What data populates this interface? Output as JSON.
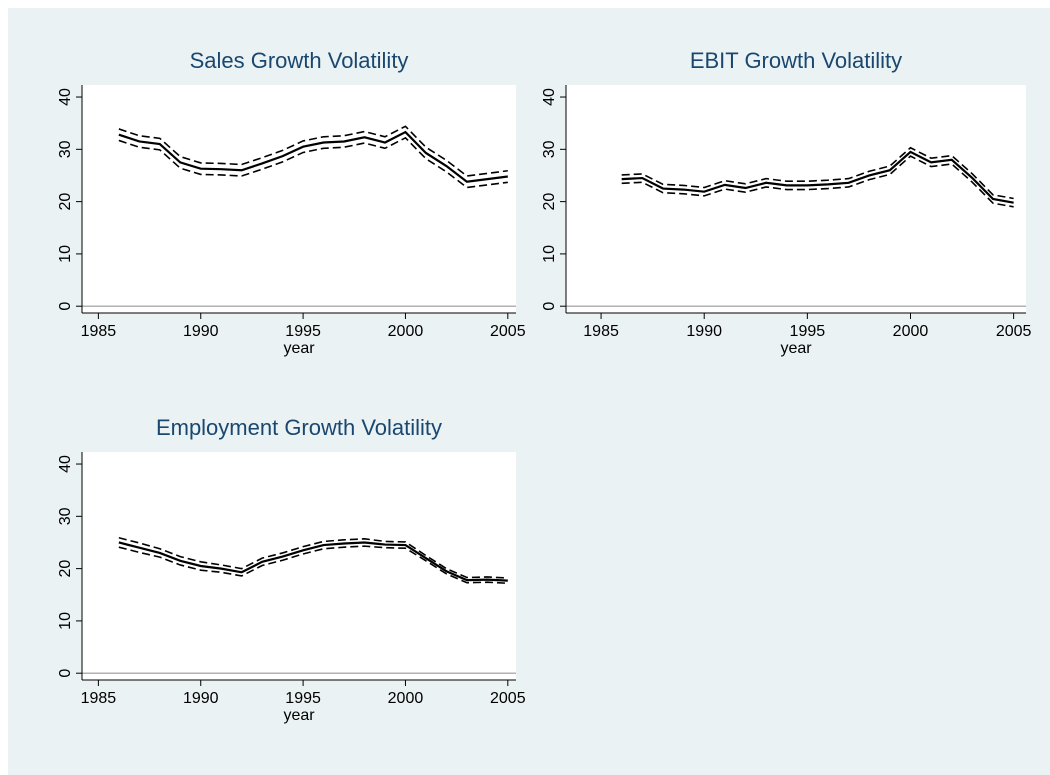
{
  "chart_data": [
    {
      "type": "line",
      "title": "Sales Growth Volatility",
      "xlabel": "year",
      "x": [
        1986,
        1987,
        1988,
        1989,
        1990,
        1991,
        1992,
        1993,
        1994,
        1995,
        1996,
        1997,
        1998,
        1999,
        2000,
        2001,
        2002,
        2003,
        2004,
        2005
      ],
      "series": [
        {
          "color": "#000000",
          "dash": false,
          "values": [
            32.8,
            31.5,
            31.0,
            27.5,
            26.3,
            26.2,
            26.0,
            27.3,
            28.7,
            30.5,
            31.3,
            31.5,
            32.3,
            31.3,
            33.3,
            29.3,
            26.8,
            23.8,
            24.3,
            24.8
          ]
        },
        {
          "color": "#000000",
          "dash": true,
          "values": [
            33.9,
            32.6,
            32.1,
            28.6,
            27.4,
            27.3,
            27.1,
            28.4,
            29.8,
            31.6,
            32.4,
            32.6,
            33.4,
            32.4,
            34.4,
            30.4,
            27.9,
            24.9,
            25.4,
            25.9
          ]
        },
        {
          "color": "#000000",
          "dash": true,
          "values": [
            31.7,
            30.4,
            29.9,
            26.4,
            25.2,
            25.1,
            24.9,
            26.2,
            27.6,
            29.4,
            30.2,
            30.4,
            31.2,
            30.2,
            32.2,
            28.2,
            25.7,
            22.7,
            23.2,
            23.7
          ]
        }
      ],
      "xlim": [
        1984.2,
        2005.4
      ],
      "xticks": [
        1985,
        1990,
        1995,
        2000,
        2005
      ],
      "ylim": [
        -1.3,
        42.3
      ],
      "yticks": [
        0,
        10,
        20,
        30,
        40
      ],
      "hline": 0,
      "grid": false
    },
    {
      "type": "line",
      "title": "EBIT Growth Volatility",
      "xlabel": "year",
      "x": [
        1986,
        1987,
        1988,
        1989,
        1990,
        1991,
        1992,
        1993,
        1994,
        1995,
        1996,
        1997,
        1998,
        1999,
        2000,
        2001,
        2002,
        2003,
        2004,
        2005
      ],
      "series": [
        {
          "color": "#000000",
          "dash": false,
          "values": [
            24.3,
            24.5,
            22.5,
            22.3,
            21.9,
            23.2,
            22.6,
            23.6,
            23.1,
            23.1,
            23.3,
            23.6,
            25.0,
            26.0,
            29.5,
            27.5,
            28.0,
            24.5,
            20.5,
            19.8
          ]
        },
        {
          "color": "#000000",
          "dash": true,
          "values": [
            25.1,
            25.3,
            23.3,
            23.1,
            22.7,
            24.0,
            23.4,
            24.4,
            23.9,
            23.9,
            24.1,
            24.4,
            25.8,
            26.8,
            30.3,
            28.3,
            28.8,
            25.3,
            21.3,
            20.6
          ]
        },
        {
          "color": "#000000",
          "dash": true,
          "values": [
            23.5,
            23.7,
            21.7,
            21.5,
            21.1,
            22.4,
            21.8,
            22.8,
            22.3,
            22.3,
            22.5,
            22.8,
            24.2,
            25.2,
            28.7,
            26.7,
            27.2,
            23.7,
            19.7,
            19.0
          ]
        }
      ],
      "xlim": [
        1983.3,
        2005.6
      ],
      "xticks": [
        1985,
        1990,
        1995,
        2000,
        2005
      ],
      "ylim": [
        -1.3,
        42.3
      ],
      "yticks": [
        0,
        10,
        20,
        30,
        40
      ],
      "hline": 0,
      "grid": false
    },
    {
      "type": "line",
      "title": "Employment Growth Volatility",
      "xlabel": "year",
      "x": [
        1986,
        1987,
        1988,
        1989,
        1990,
        1991,
        1992,
        1993,
        1994,
        1995,
        1996,
        1997,
        1998,
        1999,
        2000,
        2001,
        2002,
        2003,
        2004,
        2005
      ],
      "series": [
        {
          "color": "#000000",
          "dash": false,
          "values": [
            25.0,
            24.0,
            23.0,
            21.5,
            20.5,
            20.0,
            19.3,
            21.3,
            22.3,
            23.5,
            24.5,
            24.8,
            25.0,
            24.6,
            24.5,
            22.0,
            19.5,
            17.8,
            17.9,
            17.7
          ]
        },
        {
          "color": "#000000",
          "dash": true,
          "values": [
            25.9,
            24.9,
            23.8,
            22.3,
            21.3,
            20.7,
            20.0,
            22.0,
            23.0,
            24.2,
            25.2,
            25.5,
            25.7,
            25.2,
            25.1,
            22.5,
            20.0,
            18.3,
            18.4,
            18.2
          ]
        },
        {
          "color": "#000000",
          "dash": true,
          "values": [
            24.1,
            23.1,
            22.2,
            20.7,
            19.7,
            19.3,
            18.6,
            20.6,
            21.6,
            22.8,
            23.8,
            24.1,
            24.3,
            24.0,
            23.9,
            21.5,
            19.0,
            17.3,
            17.4,
            17.2
          ]
        }
      ],
      "xlim": [
        1984.2,
        2005.4
      ],
      "xticks": [
        1985,
        1990,
        1995,
        2000,
        2005
      ],
      "ylim": [
        -1.3,
        42.3
      ],
      "yticks": [
        0,
        10,
        20,
        30,
        40
      ],
      "hline": 0,
      "grid": false
    }
  ]
}
